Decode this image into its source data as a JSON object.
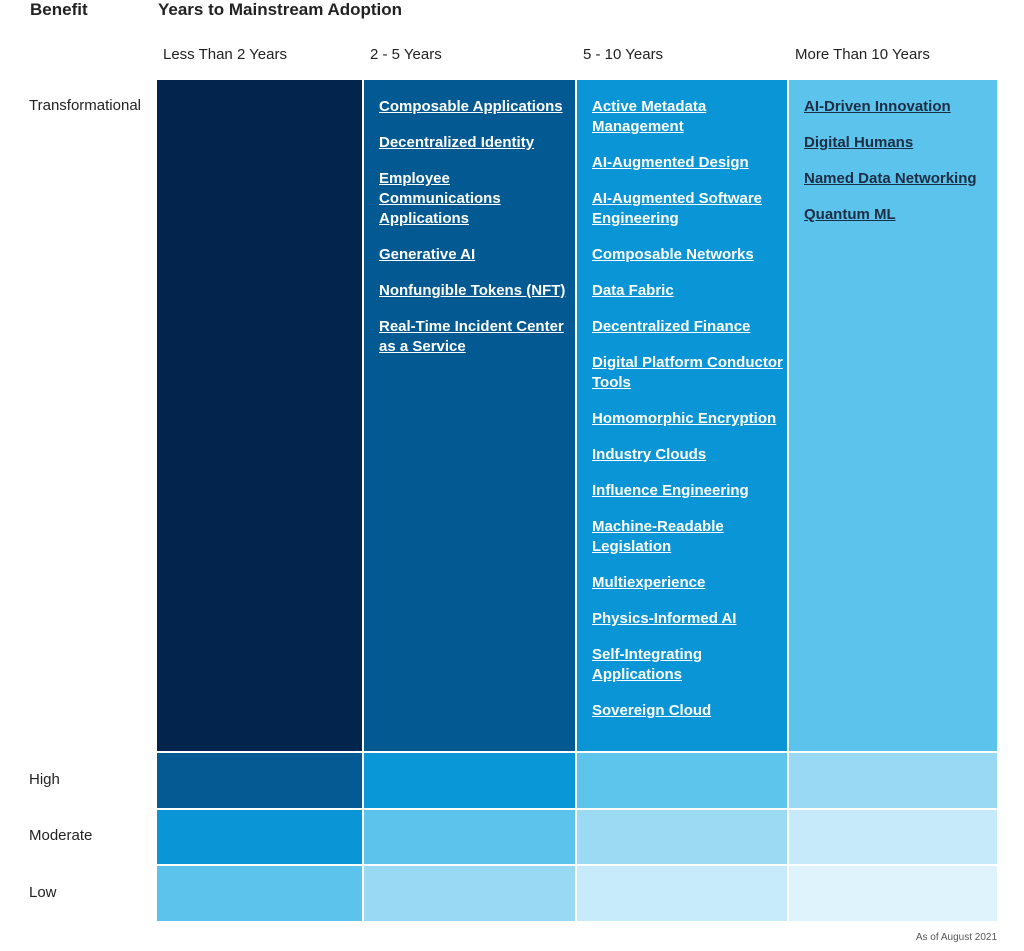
{
  "headers": {
    "benefit": "Benefit",
    "years": "Years to Mainstream Adoption"
  },
  "columns": [
    "Less Than 2 Years",
    "2 - 5 Years",
    "5 - 10 Years",
    "More Than 10 Years"
  ],
  "rows": [
    "Transformational",
    "High",
    "Moderate",
    "Low"
  ],
  "cells": {
    "transformational": {
      "lt2": [],
      "y2to5": [
        "Composable Applications",
        "Decentralized Identity",
        "Employee Communications Applications",
        "Generative AI",
        "Nonfungible Tokens (NFT)",
        "Real-Time Incident Center as a Service"
      ],
      "y5to10": [
        "Active Metadata Management",
        "AI-Augmented Design",
        "AI-Augmented Software Engineering",
        "Composable Networks",
        "Data Fabric",
        "Decentralized Finance",
        "Digital Platform Conductor Tools",
        "Homomorphic Encryption",
        "Industry Clouds",
        "Influence Engineering",
        "Machine-Readable Legislation",
        "Multiexperience",
        "Physics-Informed AI",
        "Self-Integrating Applications",
        "Sovereign Cloud"
      ],
      "gt10": [
        "AI-Driven Innovation",
        "Digital Humans",
        "Named Data Networking",
        "Quantum ML"
      ]
    }
  },
  "colors": {
    "t_lt2": "#03244c",
    "t_2to5": "#035a93",
    "t_5to10": "#0a96d6",
    "t_gt10": "#5cc3ec",
    "h_lt2": "#055a94",
    "h_2to5": "#0a97d8",
    "h_5to10": "#5dc4ec",
    "h_gt10": "#9ad9f4",
    "m_lt2": "#0a96d6",
    "m_2to5": "#5cc3ec",
    "m_5to10": "#9cdaf4",
    "m_gt10": "#c6eaf9",
    "l_lt2": "#5cc3ec",
    "l_2to5": "#9ad9f4",
    "l_5to10": "#c7ebfa",
    "l_gt10": "#dff3fc"
  },
  "footnote": "As of August 2021"
}
